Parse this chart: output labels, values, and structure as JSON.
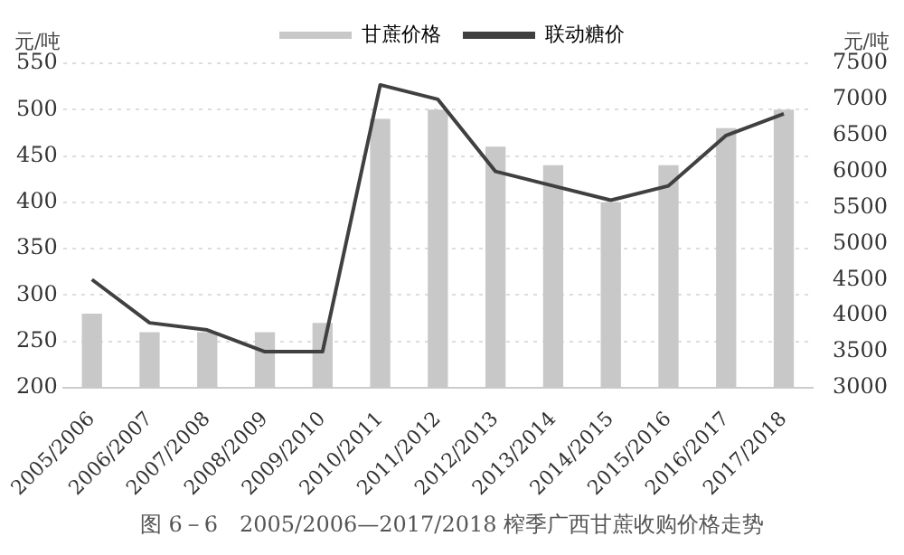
{
  "chart_data": {
    "type": "bar",
    "categories": [
      "2005/2006",
      "2006/2007",
      "2007/2008",
      "2008/2009",
      "2009/2010",
      "2010/2011",
      "2011/2012",
      "2012/2013",
      "2013/2014",
      "2014/2015",
      "2015/2016",
      "2016/2017",
      "2017/2018"
    ],
    "series": [
      {
        "name": "甘蔗价格",
        "color": "#c8c8c8",
        "values": [
          280,
          260,
          260,
          260,
          270,
          490,
          500,
          460,
          440,
          400,
          440,
          480,
          500
        ]
      },
      {
        "name": "联动糖价",
        "type": "line",
        "axis": "y2",
        "color": "#404040",
        "values": [
          4500,
          3900,
          3800,
          3500,
          3500,
          7200,
          7000,
          6000,
          5800,
          5600,
          5800,
          6500,
          6800
        ]
      }
    ],
    "ylabel": "元/吨",
    "y2label": "元/吨",
    "ylim": [
      200,
      550
    ],
    "yticks": [
      200,
      250,
      300,
      350,
      400,
      450,
      500,
      550
    ],
    "y2lim": [
      3000,
      7500
    ],
    "y2ticks": [
      3000,
      3500,
      4000,
      4500,
      5000,
      5500,
      6000,
      6500,
      7000,
      7500
    ],
    "grid": "y",
    "legend": "top",
    "marker": "none",
    "line_style": "solid",
    "annotations": [
      "图 6－6　2005/2006—2017/2018 榨季广西甘蔗收购价格走势"
    ]
  }
}
